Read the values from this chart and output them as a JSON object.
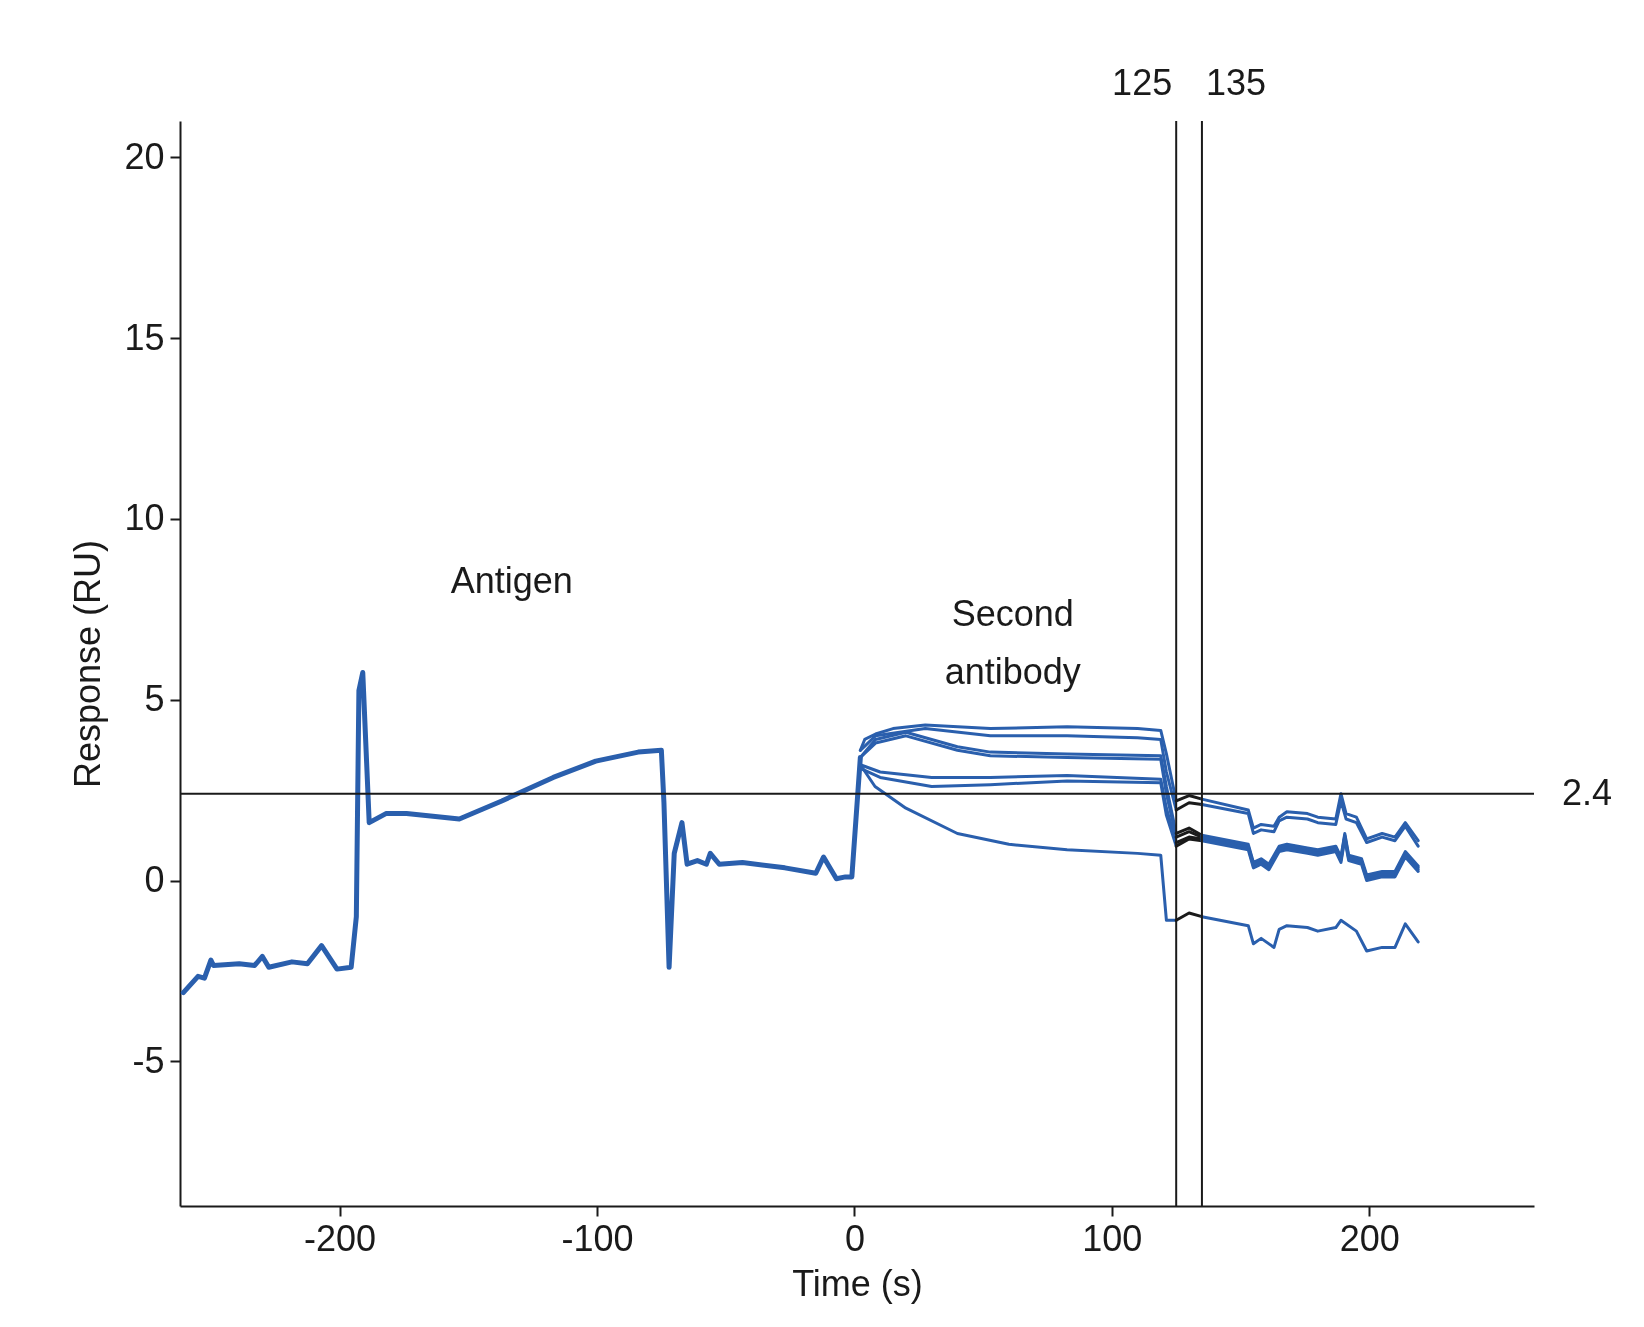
{
  "chart_data": {
    "type": "line",
    "xlabel": "Time (s)",
    "ylabel": "Response (RU)",
    "xlim": [
      -262,
      264
    ],
    "ylim": [
      -9,
      21
    ],
    "xticks": [
      -200,
      -100,
      0,
      100,
      200
    ],
    "yticks": [
      -5,
      0,
      5,
      10,
      15,
      20
    ],
    "grid": false,
    "series": [
      {
        "type": "line",
        "color": "#2a5fad",
        "x": [
          -260.7,
          -255,
          -252.5,
          -250,
          -249,
          -239,
          -233,
          -230,
          -227.5,
          -218.5,
          -212.5,
          -207,
          -201,
          -195.5,
          -193.5,
          -192.5,
          -191,
          -188.5,
          -182,
          -174,
          -153.5,
          -137,
          -117,
          -100.5,
          -84,
          -75,
          -74,
          -72,
          -70,
          -67,
          -65,
          -61,
          -57.5,
          -56,
          -52.5,
          -43.5,
          -27,
          -15,
          -12,
          -7,
          -3.5,
          -1,
          2.3
        ],
        "values": [
          -3.1,
          -2.65,
          -2.7,
          -2.2,
          -2.35,
          -2.3,
          -2.35,
          -2.1,
          -2.4,
          -2.25,
          -2.3,
          -1.8,
          -2.45,
          -2.4,
          -1,
          5.25,
          5.75,
          1.6,
          1.85,
          1.85,
          1.7,
          2.2,
          2.85,
          3.3,
          3.55,
          3.6,
          2.15,
          -2.4,
          0.75,
          1.6,
          0.45,
          0.55,
          0.45,
          0.75,
          0.45,
          0.5,
          0.35,
          0.2,
          0.65,
          0.05,
          0.1,
          0.1,
          3.4
        ]
      },
      {
        "type": "line",
        "color": "#2a5fad",
        "x": [
          2.3,
          4,
          8.2,
          15,
          27.5,
          52.8,
          82.6,
          110,
          119,
          121.2,
          125
        ],
        "values": [
          3.6,
          3.9,
          4.05,
          4.2,
          4.3,
          4.2,
          4.25,
          4.2,
          4.15,
          3.5,
          2.2
        ]
      },
      {
        "type": "line",
        "color": "#2a5fad",
        "x": [
          2.3,
          8.2,
          27.5,
          52.8,
          82.6,
          110,
          119,
          121.2,
          125
        ],
        "values": [
          3.6,
          4.0,
          4.2,
          4.0,
          4.0,
          3.95,
          3.9,
          3.0,
          1.95
        ]
      },
      {
        "type": "line",
        "color": "#2a5fad",
        "x": [
          2.3,
          8.2,
          20,
          40,
          52.8,
          82.6,
          119,
          121.2,
          125
        ],
        "values": [
          3.4,
          3.9,
          4.1,
          3.7,
          3.55,
          3.5,
          3.45,
          2.6,
          1.3
        ]
      },
      {
        "type": "line",
        "color": "#2a5fad",
        "x": [
          2.3,
          8.2,
          20,
          40,
          52.8,
          82.6,
          119,
          121.2,
          125
        ],
        "values": [
          3.4,
          3.8,
          4.0,
          3.6,
          3.45,
          3.4,
          3.35,
          2.4,
          1.2
        ]
      },
      {
        "type": "line",
        "color": "#2a5fad",
        "x": [
          2.3,
          10,
          30,
          52.8,
          82.6,
          119,
          121.2,
          125
        ],
        "values": [
          3.2,
          3.0,
          2.85,
          2.85,
          2.9,
          2.8,
          2.0,
          1.05
        ]
      },
      {
        "type": "line",
        "color": "#2a5fad",
        "x": [
          2.3,
          10,
          30,
          52.8,
          82.6,
          119,
          121.2,
          125
        ],
        "values": [
          3.1,
          2.85,
          2.6,
          2.65,
          2.75,
          2.7,
          1.8,
          0.95
        ]
      },
      {
        "type": "line",
        "color": "#2a5fad",
        "x": [
          2.3,
          8,
          20,
          40,
          60,
          82.6,
          110,
          119,
          121.2,
          125
        ],
        "values": [
          3.2,
          2.6,
          2.0,
          1.3,
          1.0,
          0.85,
          0.75,
          0.7,
          -1.1,
          -1.1
        ]
      },
      {
        "type": "line",
        "color": "#1a1a1a",
        "x": [
          125,
          130,
          135
        ],
        "values": [
          2.2,
          2.35,
          2.25
        ]
      },
      {
        "type": "line",
        "color": "#1a1a1a",
        "x": [
          125,
          130,
          135
        ],
        "values": [
          1.95,
          2.15,
          2.1
        ]
      },
      {
        "type": "line",
        "color": "#1a1a1a",
        "x": [
          125,
          130,
          135
        ],
        "values": [
          1.3,
          1.45,
          1.25
        ]
      },
      {
        "type": "line",
        "color": "#1a1a1a",
        "x": [
          125,
          130,
          135
        ],
        "values": [
          1.2,
          1.35,
          1.2
        ]
      },
      {
        "type": "line",
        "color": "#1a1a1a",
        "x": [
          125,
          130,
          135
        ],
        "values": [
          1.05,
          1.2,
          1.15
        ]
      },
      {
        "type": "line",
        "color": "#1a1a1a",
        "x": [
          125,
          130,
          135
        ],
        "values": [
          0.95,
          1.15,
          1.1
        ]
      },
      {
        "type": "line",
        "color": "#1a1a1a",
        "x": [
          125,
          130,
          135
        ],
        "values": [
          -1.1,
          -0.9,
          -1.0
        ]
      },
      {
        "type": "line",
        "color": "#2a5fad",
        "x": [
          135,
          153,
          155,
          158,
          163,
          165,
          168,
          176,
          180,
          187,
          189,
          191,
          195,
          199,
          205,
          210,
          214,
          219
        ],
        "values": [
          2.25,
          1.95,
          1.45,
          1.55,
          1.5,
          1.75,
          1.9,
          1.85,
          1.75,
          1.7,
          2.4,
          1.85,
          1.75,
          1.15,
          1.3,
          1.2,
          1.6,
          1.1
        ]
      },
      {
        "type": "line",
        "color": "#2a5fad",
        "x": [
          135,
          153,
          155,
          158,
          163,
          165,
          168,
          176,
          180,
          187,
          189,
          191,
          195,
          199,
          205,
          210,
          214,
          219
        ],
        "values": [
          2.1,
          1.85,
          1.3,
          1.4,
          1.35,
          1.65,
          1.75,
          1.7,
          1.6,
          1.55,
          2.2,
          1.7,
          1.6,
          1.05,
          1.2,
          1.1,
          1.5,
          0.95
        ]
      },
      {
        "type": "line",
        "color": "#2a5fad",
        "x": [
          135,
          153,
          155,
          158,
          161,
          165,
          168,
          176,
          180,
          187,
          189,
          190.5,
          192,
          197,
          199,
          205,
          210,
          214,
          219
        ],
        "values": [
          1.25,
          1.0,
          0.5,
          0.6,
          0.45,
          0.95,
          1.0,
          0.9,
          0.85,
          0.95,
          0.65,
          1.3,
          0.7,
          0.6,
          0.15,
          0.25,
          0.25,
          0.8,
          0.4
        ]
      },
      {
        "type": "line",
        "color": "#2a5fad",
        "x": [
          135,
          153,
          155,
          158,
          161,
          165,
          168,
          176,
          180,
          187,
          189,
          190.5,
          192,
          197,
          199,
          205,
          210,
          214,
          219
        ],
        "values": [
          1.2,
          0.95,
          0.45,
          0.55,
          0.4,
          0.9,
          0.95,
          0.85,
          0.8,
          0.9,
          0.6,
          1.25,
          0.65,
          0.55,
          0.1,
          0.2,
          0.2,
          0.75,
          0.35
        ]
      },
      {
        "type": "line",
        "color": "#2a5fad",
        "x": [
          135,
          153,
          155,
          158,
          161,
          165,
          168,
          176,
          180,
          187,
          189,
          190.5,
          192,
          197,
          199,
          205,
          210,
          214,
          219
        ],
        "values": [
          1.15,
          0.9,
          0.4,
          0.5,
          0.35,
          0.85,
          0.9,
          0.8,
          0.75,
          0.85,
          0.55,
          1.2,
          0.6,
          0.5,
          0.05,
          0.15,
          0.15,
          0.7,
          0.3
        ]
      },
      {
        "type": "line",
        "color": "#2a5fad",
        "x": [
          135,
          153,
          155,
          158,
          161,
          165,
          168,
          176,
          180,
          187,
          189,
          190.5,
          192,
          197,
          199,
          205,
          210,
          214,
          219
        ],
        "values": [
          1.1,
          0.85,
          0.35,
          0.45,
          0.3,
          0.8,
          0.85,
          0.75,
          0.7,
          0.8,
          0.5,
          1.15,
          0.55,
          0.45,
          0.0,
          0.1,
          0.1,
          0.65,
          0.25
        ]
      },
      {
        "type": "line",
        "color": "#2a5fad",
        "x": [
          135,
          153,
          155,
          158,
          163,
          165,
          168,
          176,
          180,
          187,
          189,
          195,
          199,
          205,
          210,
          214,
          219
        ],
        "values": [
          -1.0,
          -1.25,
          -1.75,
          -1.6,
          -1.85,
          -1.35,
          -1.25,
          -1.3,
          -1.4,
          -1.3,
          -1.1,
          -1.4,
          -1.95,
          -1.85,
          -1.85,
          -1.2,
          -1.7
        ]
      }
    ],
    "ref_lines": [
      {
        "axis": "x",
        "value": 125,
        "label": "125",
        "color": "#1a1a1a"
      },
      {
        "axis": "x",
        "value": 135,
        "label": "135",
        "color": "#1a1a1a"
      },
      {
        "axis": "y",
        "value": 2.4,
        "label": "2.4",
        "color": "#1a1a1a"
      }
    ],
    "annotations": [
      "Antigen",
      "Second\nantibody"
    ]
  }
}
